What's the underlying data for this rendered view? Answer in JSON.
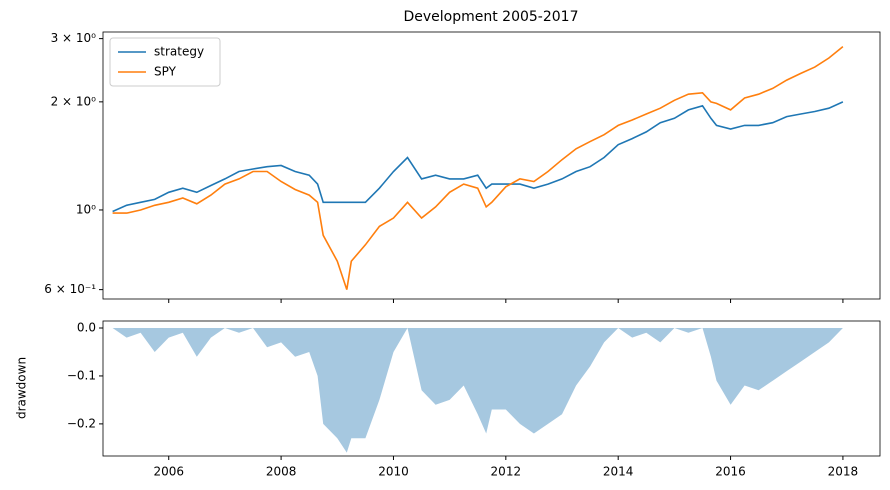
{
  "chart_data": [
    {
      "type": "line",
      "title": "Development 2005-2017",
      "log_y": true,
      "legend": "upper left",
      "x": [
        2005,
        2005.25,
        2005.5,
        2005.75,
        2006,
        2006.25,
        2006.5,
        2006.75,
        2007,
        2007.25,
        2007.5,
        2007.75,
        2008,
        2008.25,
        2008.5,
        2008.65,
        2008.75,
        2009,
        2009.17,
        2009.25,
        2009.5,
        2009.75,
        2010,
        2010.25,
        2010.5,
        2010.75,
        2011,
        2011.25,
        2011.5,
        2011.65,
        2011.75,
        2012,
        2012.25,
        2012.5,
        2012.75,
        2013,
        2013.25,
        2013.5,
        2013.75,
        2014,
        2014.25,
        2014.5,
        2014.75,
        2015,
        2015.25,
        2015.5,
        2015.65,
        2015.75,
        2016,
        2016.25,
        2016.5,
        2016.75,
        2017,
        2017.25,
        2017.5,
        2017.75,
        2018
      ],
      "series": [
        {
          "name": "strategy",
          "color": "#1f77b4",
          "values": [
            0.99,
            1.03,
            1.05,
            1.07,
            1.12,
            1.15,
            1.12,
            1.17,
            1.22,
            1.28,
            1.3,
            1.32,
            1.33,
            1.28,
            1.25,
            1.18,
            1.05,
            1.05,
            1.05,
            1.05,
            1.05,
            1.15,
            1.28,
            1.4,
            1.22,
            1.25,
            1.22,
            1.22,
            1.25,
            1.15,
            1.18,
            1.18,
            1.18,
            1.15,
            1.18,
            1.22,
            1.28,
            1.32,
            1.4,
            1.52,
            1.58,
            1.65,
            1.75,
            1.8,
            1.9,
            1.95,
            1.8,
            1.72,
            1.68,
            1.72,
            1.72,
            1.75,
            1.82,
            1.85,
            1.88,
            1.92,
            2.0
          ]
        },
        {
          "name": "SPY",
          "color": "#ff7f0e",
          "values": [
            0.98,
            0.98,
            1.0,
            1.03,
            1.05,
            1.08,
            1.04,
            1.1,
            1.18,
            1.22,
            1.28,
            1.28,
            1.2,
            1.14,
            1.1,
            1.05,
            0.85,
            0.72,
            0.6,
            0.72,
            0.8,
            0.9,
            0.95,
            1.05,
            0.95,
            1.02,
            1.12,
            1.18,
            1.15,
            1.02,
            1.05,
            1.16,
            1.22,
            1.2,
            1.28,
            1.38,
            1.48,
            1.55,
            1.62,
            1.72,
            1.78,
            1.85,
            1.92,
            2.02,
            2.1,
            2.12,
            2.0,
            1.98,
            1.9,
            2.05,
            2.1,
            2.18,
            2.3,
            2.4,
            2.5,
            2.65,
            2.85
          ]
        }
      ],
      "xlim": [
        2004.83,
        2018.66
      ],
      "ylim": [
        0.565,
        3.13
      ],
      "yticks": [
        {
          "value": 0.6,
          "label": "6 × 10⁻¹"
        },
        {
          "value": 1,
          "label": "10⁰"
        },
        {
          "value": 2,
          "label": "2 × 10⁰"
        },
        {
          "value": 3,
          "label": "3 × 10⁰"
        }
      ]
    },
    {
      "type": "area",
      "ylabel": "drawdown",
      "color": "#a6c8e0",
      "x": [
        2005,
        2005.25,
        2005.5,
        2005.75,
        2006,
        2006.25,
        2006.5,
        2006.75,
        2007,
        2007.25,
        2007.5,
        2007.75,
        2008,
        2008.25,
        2008.5,
        2008.65,
        2008.75,
        2009,
        2009.17,
        2009.25,
        2009.5,
        2009.75,
        2010,
        2010.25,
        2010.5,
        2010.75,
        2011,
        2011.25,
        2011.5,
        2011.65,
        2011.75,
        2012,
        2012.25,
        2012.5,
        2012.75,
        2013,
        2013.25,
        2013.5,
        2013.75,
        2014,
        2014.25,
        2014.5,
        2014.75,
        2015,
        2015.25,
        2015.5,
        2015.65,
        2015.75,
        2016,
        2016.25,
        2016.5,
        2016.75,
        2017,
        2017.25,
        2017.5,
        2017.75,
        2018
      ],
      "values": [
        0,
        -0.02,
        -0.01,
        -0.05,
        -0.02,
        -0.01,
        -0.06,
        -0.02,
        0,
        -0.01,
        0,
        -0.04,
        -0.03,
        -0.06,
        -0.05,
        -0.1,
        -0.2,
        -0.23,
        -0.26,
        -0.23,
        -0.23,
        -0.15,
        -0.05,
        0,
        -0.13,
        -0.16,
        -0.15,
        -0.12,
        -0.18,
        -0.22,
        -0.17,
        -0.17,
        -0.2,
        -0.22,
        -0.2,
        -0.18,
        -0.12,
        -0.08,
        -0.03,
        0,
        -0.02,
        -0.01,
        -0.03,
        0,
        -0.01,
        0,
        -0.06,
        -0.11,
        -0.16,
        -0.12,
        -0.13,
        -0.11,
        -0.09,
        -0.07,
        -0.05,
        -0.03,
        0
      ],
      "xlim": [
        2004.83,
        2018.66
      ],
      "ylim": [
        -0.267,
        0.0146
      ],
      "xticks": [
        2006,
        2008,
        2010,
        2012,
        2014,
        2016,
        2018
      ],
      "yticks": [
        {
          "value": 0,
          "label": "0.0"
        },
        {
          "value": -0.1,
          "label": "−0.1"
        },
        {
          "value": -0.2,
          "label": "−0.2"
        }
      ]
    }
  ]
}
